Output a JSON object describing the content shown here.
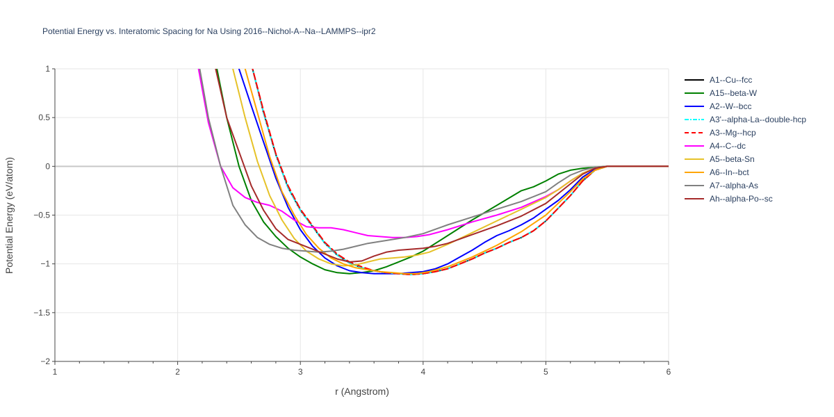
{
  "chart_data": {
    "type": "line",
    "title": "Potential Energy vs. Interatomic Spacing for Na Using 2016--Nichol-A--Na--LAMMPS--ipr2",
    "xlabel": "r (Angstrom)",
    "ylabel": "Potential Energy (eV/atom)",
    "xlim": [
      1,
      6
    ],
    "ylim": [
      -2,
      1
    ],
    "xticks": [
      1,
      2,
      3,
      4,
      5,
      6
    ],
    "xtick_labels": [
      "1",
      "2",
      "3",
      "4",
      "5",
      "6"
    ],
    "yticks": [
      -2,
      -1.5,
      -1,
      -0.5,
      0,
      0.5,
      1
    ],
    "ytick_labels": [
      "−2",
      "−1.5",
      "−1",
      "−0.5",
      "0",
      "0.5",
      "1"
    ],
    "grid": true,
    "legend_position": "right",
    "series": [
      {
        "name": "A1--Cu--fcc",
        "color": "#000000",
        "dash": "solid",
        "x": [
          2.6,
          2.7,
          2.8,
          2.9,
          3.0,
          3.1,
          3.2,
          3.3,
          3.4,
          3.5,
          3.6,
          3.7,
          3.8,
          3.9,
          4.0,
          4.1,
          4.2,
          4.3,
          4.4,
          4.5,
          4.6,
          4.7,
          4.8,
          4.9,
          5.0,
          5.1,
          5.2,
          5.3,
          5.4,
          5.5,
          5.6,
          5.8,
          6.0
        ],
        "y": [
          1.05,
          0.55,
          0.12,
          -0.22,
          -0.45,
          -0.62,
          -0.79,
          -0.91,
          -0.99,
          -1.04,
          -1.07,
          -1.09,
          -1.1,
          -1.11,
          -1.1,
          -1.08,
          -1.05,
          -1.0,
          -0.95,
          -0.89,
          -0.84,
          -0.78,
          -0.73,
          -0.66,
          -0.56,
          -0.43,
          -0.3,
          -0.15,
          -0.04,
          0.0,
          0.0,
          0.0,
          0.0
        ]
      },
      {
        "name": "A15--beta-W",
        "color": "#008000",
        "dash": "solid",
        "x": [
          2.32,
          2.4,
          2.5,
          2.6,
          2.7,
          2.8,
          2.9,
          3.0,
          3.1,
          3.2,
          3.3,
          3.4,
          3.5,
          3.6,
          3.7,
          3.8,
          3.9,
          4.0,
          4.2,
          4.4,
          4.6,
          4.8,
          4.9,
          5.0,
          5.1,
          5.2,
          5.3,
          5.4,
          5.5,
          5.6,
          6.0
        ],
        "y": [
          1.0,
          0.5,
          0.0,
          -0.35,
          -0.57,
          -0.72,
          -0.84,
          -0.93,
          -1.0,
          -1.06,
          -1.09,
          -1.1,
          -1.09,
          -1.07,
          -1.03,
          -0.98,
          -0.93,
          -0.87,
          -0.71,
          -0.55,
          -0.4,
          -0.25,
          -0.21,
          -0.15,
          -0.08,
          -0.04,
          -0.02,
          -0.01,
          0.0,
          0.0,
          0.0
        ]
      },
      {
        "name": "A2--W--bcc",
        "color": "#0000ff",
        "dash": "solid",
        "x": [
          2.5,
          2.6,
          2.7,
          2.8,
          2.9,
          3.0,
          3.1,
          3.2,
          3.3,
          3.4,
          3.5,
          3.6,
          3.7,
          3.8,
          3.9,
          4.0,
          4.1,
          4.2,
          4.3,
          4.4,
          4.5,
          4.6,
          4.7,
          4.8,
          4.9,
          5.0,
          5.1,
          5.2,
          5.3,
          5.4,
          5.5,
          5.6,
          6.0
        ],
        "y": [
          1.0,
          0.62,
          0.25,
          -0.12,
          -0.42,
          -0.65,
          -0.82,
          -0.94,
          -1.02,
          -1.07,
          -1.09,
          -1.1,
          -1.1,
          -1.1,
          -1.09,
          -1.08,
          -1.05,
          -1.0,
          -0.93,
          -0.86,
          -0.78,
          -0.71,
          -0.66,
          -0.6,
          -0.53,
          -0.44,
          -0.35,
          -0.24,
          -0.11,
          -0.03,
          0.0,
          0.0,
          0.0
        ]
      },
      {
        "name": "A3'--alpha-La--double-hcp",
        "color": "#00ffff",
        "dash": "dashdot",
        "x": [
          2.6,
          2.7,
          2.8,
          2.9,
          3.0,
          3.1,
          3.2,
          3.3,
          3.4,
          3.5,
          3.6,
          3.7,
          3.8,
          3.9,
          4.0,
          4.1,
          4.2,
          4.3,
          4.4,
          4.5,
          4.6,
          4.7,
          4.8,
          4.9,
          5.0,
          5.1,
          5.2,
          5.3,
          5.4,
          5.5,
          5.6,
          5.8,
          6.0
        ],
        "y": [
          1.05,
          0.55,
          0.12,
          -0.22,
          -0.45,
          -0.62,
          -0.79,
          -0.91,
          -0.99,
          -1.04,
          -1.07,
          -1.09,
          -1.1,
          -1.11,
          -1.1,
          -1.08,
          -1.05,
          -1.0,
          -0.95,
          -0.89,
          -0.84,
          -0.78,
          -0.73,
          -0.66,
          -0.56,
          -0.43,
          -0.3,
          -0.15,
          -0.04,
          0.0,
          0.0,
          0.0,
          0.0
        ]
      },
      {
        "name": "A3--Mg--hcp",
        "color": "#ff0000",
        "dash": "dash",
        "x": [
          2.6,
          2.7,
          2.8,
          2.9,
          3.0,
          3.1,
          3.2,
          3.3,
          3.4,
          3.5,
          3.6,
          3.7,
          3.8,
          3.9,
          4.0,
          4.1,
          4.2,
          4.3,
          4.4,
          4.5,
          4.6,
          4.7,
          4.8,
          4.9,
          5.0,
          5.1,
          5.2,
          5.3,
          5.4,
          5.5,
          5.6,
          5.8,
          6.0
        ],
        "y": [
          1.05,
          0.57,
          0.13,
          -0.2,
          -0.44,
          -0.61,
          -0.78,
          -0.9,
          -0.98,
          -1.03,
          -1.07,
          -1.09,
          -1.1,
          -1.11,
          -1.1,
          -1.08,
          -1.05,
          -1.0,
          -0.95,
          -0.89,
          -0.84,
          -0.78,
          -0.73,
          -0.66,
          -0.56,
          -0.43,
          -0.3,
          -0.15,
          -0.04,
          0.0,
          0.0,
          0.0,
          0.0
        ]
      },
      {
        "name": "A4--C--dc",
        "color": "#ff00ff",
        "dash": "solid",
        "x": [
          2.17,
          2.25,
          2.35,
          2.45,
          2.55,
          2.65,
          2.75,
          2.85,
          2.95,
          3.05,
          3.15,
          3.25,
          3.35,
          3.45,
          3.55,
          3.65,
          3.75,
          3.85,
          3.95,
          4.05,
          4.2,
          4.4,
          4.6,
          4.8,
          5.0,
          5.1,
          5.2,
          5.3,
          5.4,
          5.5,
          5.6,
          6.0
        ],
        "y": [
          1.0,
          0.45,
          0.0,
          -0.22,
          -0.32,
          -0.37,
          -0.4,
          -0.46,
          -0.55,
          -0.62,
          -0.63,
          -0.63,
          -0.65,
          -0.68,
          -0.71,
          -0.72,
          -0.73,
          -0.73,
          -0.72,
          -0.7,
          -0.65,
          -0.57,
          -0.5,
          -0.42,
          -0.31,
          -0.24,
          -0.15,
          -0.07,
          -0.02,
          0.0,
          0.0,
          0.0
        ]
      },
      {
        "name": "A5--beta-Sn",
        "color": "#e6c229",
        "dash": "solid",
        "x": [
          2.45,
          2.55,
          2.65,
          2.75,
          2.85,
          2.95,
          3.05,
          3.15,
          3.25,
          3.35,
          3.45,
          3.55,
          3.65,
          3.75,
          3.85,
          3.95,
          4.05,
          4.2,
          4.4,
          4.6,
          4.8,
          5.0,
          5.1,
          5.2,
          5.3,
          5.4,
          5.5,
          5.6,
          6.0
        ],
        "y": [
          1.0,
          0.5,
          0.05,
          -0.3,
          -0.55,
          -0.74,
          -0.87,
          -0.95,
          -1.0,
          -1.02,
          -1.01,
          -0.98,
          -0.95,
          -0.94,
          -0.93,
          -0.91,
          -0.88,
          -0.8,
          -0.68,
          -0.56,
          -0.44,
          -0.32,
          -0.24,
          -0.15,
          -0.07,
          -0.02,
          0.0,
          0.0,
          0.0
        ]
      },
      {
        "name": "A6--In--bct",
        "color": "#ffa500",
        "dash": "solid",
        "x": [
          2.55,
          2.65,
          2.75,
          2.85,
          2.95,
          3.05,
          3.15,
          3.25,
          3.35,
          3.45,
          3.55,
          3.65,
          3.75,
          3.85,
          3.95,
          4.05,
          4.2,
          4.4,
          4.6,
          4.8,
          5.0,
          5.1,
          5.2,
          5.3,
          5.4,
          5.5,
          5.6,
          6.0
        ],
        "y": [
          1.0,
          0.55,
          0.1,
          -0.26,
          -0.5,
          -0.7,
          -0.84,
          -0.94,
          -1.0,
          -1.04,
          -1.06,
          -1.08,
          -1.09,
          -1.1,
          -1.1,
          -1.08,
          -1.03,
          -0.93,
          -0.81,
          -0.67,
          -0.5,
          -0.38,
          -0.26,
          -0.13,
          -0.04,
          0.0,
          0.0,
          0.0
        ]
      },
      {
        "name": "A7--alpha-As",
        "color": "#808080",
        "dash": "solid",
        "x": [
          2.18,
          2.25,
          2.35,
          2.45,
          2.55,
          2.65,
          2.75,
          2.85,
          2.95,
          3.05,
          3.15,
          3.25,
          3.35,
          3.45,
          3.55,
          3.7,
          3.85,
          4.0,
          4.2,
          4.4,
          4.6,
          4.8,
          5.0,
          5.1,
          5.2,
          5.3,
          5.4,
          5.5,
          5.6,
          6.0
        ],
        "y": [
          1.0,
          0.5,
          0.0,
          -0.4,
          -0.6,
          -0.73,
          -0.8,
          -0.84,
          -0.86,
          -0.87,
          -0.88,
          -0.87,
          -0.85,
          -0.82,
          -0.79,
          -0.76,
          -0.73,
          -0.69,
          -0.6,
          -0.52,
          -0.44,
          -0.36,
          -0.26,
          -0.17,
          -0.09,
          -0.04,
          -0.01,
          0.0,
          0.0,
          0.0
        ]
      },
      {
        "name": "Ah--alpha-Po--sc",
        "color": "#a52a2a",
        "dash": "solid",
        "x": [
          2.31,
          2.4,
          2.5,
          2.6,
          2.7,
          2.8,
          2.9,
          3.0,
          3.1,
          3.2,
          3.3,
          3.4,
          3.5,
          3.6,
          3.7,
          3.8,
          3.9,
          4.0,
          4.1,
          4.2,
          4.4,
          4.6,
          4.8,
          5.0,
          5.1,
          5.2,
          5.3,
          5.4,
          5.5,
          5.6,
          6.0
        ],
        "y": [
          1.0,
          0.5,
          0.15,
          -0.2,
          -0.45,
          -0.64,
          -0.75,
          -0.8,
          -0.85,
          -0.9,
          -0.95,
          -0.98,
          -0.97,
          -0.92,
          -0.88,
          -0.86,
          -0.85,
          -0.84,
          -0.82,
          -0.79,
          -0.7,
          -0.61,
          -0.51,
          -0.38,
          -0.28,
          -0.18,
          -0.08,
          -0.02,
          0.0,
          0.0,
          0.0
        ]
      }
    ]
  }
}
